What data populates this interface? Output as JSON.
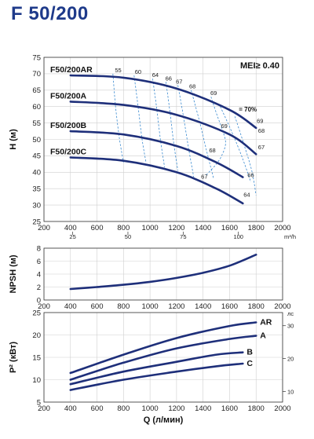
{
  "page": {
    "title": "F 50/200"
  },
  "colors": {
    "curve": "#1e2f7a",
    "iso": "#3a8ad0",
    "grid": "#cfcfcf",
    "title": "#1e3a8a"
  },
  "chart_data": [
    {
      "type": "line",
      "name_tag": "hq",
      "ylabel": "H (м)",
      "xlim": [
        200,
        2000
      ],
      "ylim": [
        25,
        75
      ],
      "x_ticks": [
        200,
        400,
        600,
        800,
        1000,
        1200,
        1400,
        1600,
        1800,
        2000
      ],
      "y_ticks": [
        25,
        30,
        35,
        40,
        45,
        50,
        55,
        60,
        65,
        70,
        75
      ],
      "secondary_x": {
        "unit": "m³/h",
        "ticks": [
          25,
          50,
          75,
          100
        ]
      },
      "annotation": "MEI≥ 0.40",
      "best_efficiency_label": "70%",
      "series": [
        {
          "name": "F50/200AR",
          "x": [
            400,
            800,
            1200,
            1600,
            1800
          ],
          "y": [
            69.5,
            68.8,
            65.5,
            59,
            53.5
          ]
        },
        {
          "name": "F50/200A",
          "x": [
            400,
            800,
            1200,
            1600,
            1800
          ],
          "y": [
            61.5,
            60.5,
            57.5,
            51.5,
            45.5
          ]
        },
        {
          "name": "F50/200B",
          "x": [
            400,
            800,
            1200,
            1500,
            1700
          ],
          "y": [
            52.5,
            51.5,
            48,
            43,
            38.5
          ]
        },
        {
          "name": "F50/200C",
          "x": [
            400,
            800,
            1200,
            1500,
            1700
          ],
          "y": [
            44.5,
            43.5,
            40,
            35,
            30.5
          ]
        }
      ],
      "efficiency_labels": [
        {
          "t": "55",
          "x": 760,
          "y": 70.5
        },
        {
          "t": "60",
          "x": 910,
          "y": 70
        },
        {
          "t": "64",
          "x": 1040,
          "y": 69
        },
        {
          "t": "66",
          "x": 1140,
          "y": 68
        },
        {
          "t": "67",
          "x": 1220,
          "y": 67
        },
        {
          "t": "68",
          "x": 1320,
          "y": 65.5
        },
        {
          "t": "69",
          "x": 1480,
          "y": 63.5
        },
        {
          "t": "69",
          "x": 1830,
          "y": 55
        },
        {
          "t": "68",
          "x": 1840,
          "y": 52
        },
        {
          "t": "67",
          "x": 1840,
          "y": 47
        },
        {
          "t": "69",
          "x": 1560,
          "y": 53.5
        },
        {
          "t": "68",
          "x": 1470,
          "y": 46
        },
        {
          "t": "66",
          "x": 1760,
          "y": 38.5
        },
        {
          "t": "67",
          "x": 1410,
          "y": 38
        },
        {
          "t": "64",
          "x": 1730,
          "y": 32.5
        }
      ],
      "iso_efficiency_curves": [
        {
          "x": [
            720,
            740,
            770,
            800
          ],
          "y": [
            70,
            60,
            50,
            43
          ]
        },
        {
          "x": [
            880,
            910,
            940,
            970
          ],
          "y": [
            69.5,
            60,
            50,
            43
          ]
        },
        {
          "x": [
            1020,
            1050,
            1080,
            1110
          ],
          "y": [
            68.5,
            59.5,
            49.5,
            41.5
          ]
        },
        {
          "x": [
            1120,
            1150,
            1180,
            1210
          ],
          "y": [
            67.5,
            58.5,
            48.5,
            40.5
          ]
        },
        {
          "x": [
            1210,
            1250,
            1290,
            1330
          ],
          "y": [
            66.5,
            57.5,
            47.5,
            38.5
          ]
        },
        {
          "x": [
            1310,
            1370,
            1430,
            1480
          ],
          "y": [
            65,
            56,
            46,
            38
          ]
        },
        {
          "x": [
            1460,
            1500,
            1540,
            1570,
            1540,
            1490,
            1420
          ],
          "y": [
            63,
            58,
            53.5,
            49,
            45,
            42,
            39
          ]
        },
        {
          "x": [
            1530,
            1620,
            1700,
            1760
          ],
          "y": [
            60,
            52,
            44,
            37
          ]
        },
        {
          "x": [
            1640,
            1720,
            1770,
            1800
          ],
          "y": [
            57,
            47,
            40,
            33
          ]
        }
      ]
    },
    {
      "type": "line",
      "name_tag": "npsh",
      "ylabel": "NPSH (м)",
      "xlim": [
        200,
        2000
      ],
      "ylim": [
        0,
        8
      ],
      "x_ticks": [
        200,
        400,
        600,
        800,
        1000,
        1200,
        1400,
        1600,
        1800,
        2000
      ],
      "y_ticks": [
        0,
        2,
        4,
        6,
        8
      ],
      "series": [
        {
          "x": [
            400,
            600,
            800,
            1000,
            1200,
            1400,
            1600,
            1800
          ],
          "y": [
            1.7,
            2.0,
            2.35,
            2.8,
            3.4,
            4.2,
            5.3,
            7.0
          ]
        }
      ]
    },
    {
      "type": "line",
      "name_tag": "power",
      "ylabel": "P² (кВт)",
      "xlabel": "Q (л/мин)",
      "xlim": [
        200,
        2000
      ],
      "ylim": [
        5,
        25
      ],
      "x_ticks": [
        200,
        400,
        600,
        800,
        1000,
        1200,
        1400,
        1600,
        1800,
        2000
      ],
      "y_ticks": [
        5,
        10,
        15,
        20,
        25
      ],
      "secondary_y": {
        "unit": "лс",
        "ticks": [
          10,
          20,
          30
        ]
      },
      "series": [
        {
          "name": "AR",
          "x": [
            400,
            800,
            1200,
            1600,
            1800
          ],
          "y": [
            11.5,
            15.6,
            19.3,
            22,
            22.8
          ]
        },
        {
          "name": "A",
          "x": [
            400,
            800,
            1200,
            1600,
            1800
          ],
          "y": [
            10,
            13.8,
            17,
            19.1,
            19.8
          ]
        },
        {
          "name": "B",
          "x": [
            400,
            800,
            1200,
            1500,
            1700
          ],
          "y": [
            9,
            11.8,
            14,
            15.6,
            16.1
          ]
        },
        {
          "name": "C",
          "x": [
            400,
            800,
            1200,
            1500,
            1700
          ],
          "y": [
            7.7,
            10,
            11.8,
            13,
            13.6
          ]
        }
      ]
    }
  ]
}
